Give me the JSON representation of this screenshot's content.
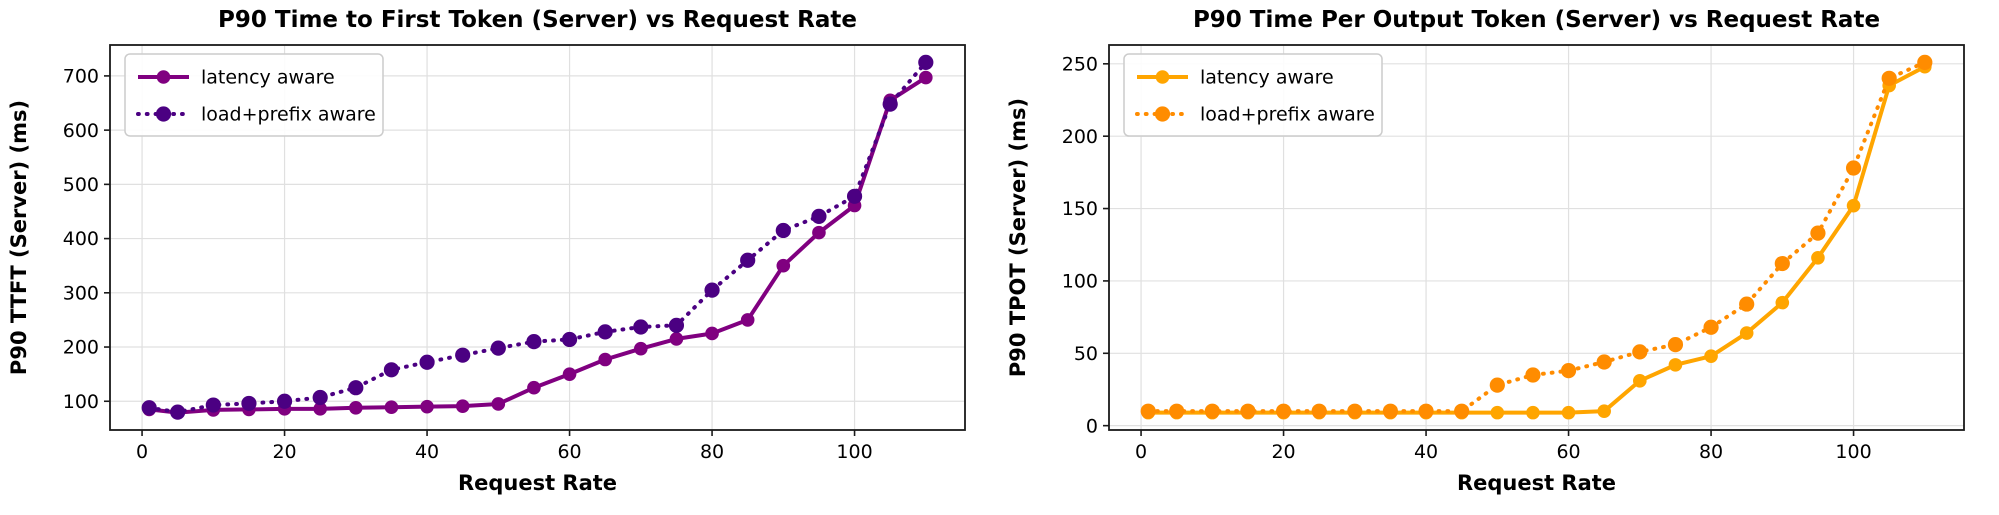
{
  "page": {
    "background": "#ffffff",
    "grid_color": "#e0e0e0",
    "spine_color": "#1a1a1a",
    "legend_border_color": "#cccccc"
  },
  "chart_data": [
    {
      "type": "line",
      "title": "P90 Time to First Token (Server) vs Request Rate",
      "xlabel": "Request Rate",
      "ylabel": "P90 TTFT (Server) (ms)",
      "xlim": [
        -4.5,
        115.5
      ],
      "ylim": [
        47,
        757
      ],
      "xticks": [
        0,
        20,
        40,
        60,
        80,
        100
      ],
      "yticks": [
        100,
        200,
        300,
        400,
        500,
        600,
        700
      ],
      "grid": true,
      "legend_position": "upper-left",
      "x": [
        1,
        5,
        10,
        15,
        20,
        25,
        30,
        35,
        40,
        45,
        50,
        55,
        60,
        65,
        70,
        75,
        80,
        85,
        90,
        95,
        100,
        105,
        110
      ],
      "series": [
        {
          "name": "latency aware",
          "color": "#800080",
          "line_style": "solid",
          "marker": "circle",
          "values": [
            85,
            79,
            84,
            85,
            86,
            86,
            88,
            89,
            90,
            91,
            95,
            125,
            150,
            177,
            197,
            215,
            225,
            250,
            350,
            411,
            461,
            655,
            697
          ]
        },
        {
          "name": "load+prefix aware",
          "color": "#4B0082",
          "line_style": "dotted",
          "marker": "circle",
          "values": [
            88,
            80,
            93,
            96,
            100,
            107,
            125,
            158,
            172,
            185,
            198,
            210,
            214,
            228,
            237,
            240,
            305,
            360,
            415,
            441,
            478,
            648,
            725
          ]
        }
      ]
    },
    {
      "type": "line",
      "title": "P90 Time Per Output Token (Server) vs Request Rate",
      "xlabel": "Request Rate",
      "ylabel": "P90 TPOT (Server) (ms)",
      "xlim": [
        -4.5,
        115.5
      ],
      "ylim": [
        -3,
        263
      ],
      "xticks": [
        0,
        20,
        40,
        60,
        80,
        100
      ],
      "yticks": [
        0,
        50,
        100,
        150,
        200,
        250
      ],
      "grid": true,
      "legend_position": "upper-left",
      "x": [
        1,
        5,
        10,
        15,
        20,
        25,
        30,
        35,
        40,
        45,
        50,
        55,
        60,
        65,
        70,
        75,
        80,
        85,
        90,
        95,
        100,
        105,
        110
      ],
      "series": [
        {
          "name": "latency aware",
          "color": "#FFA500",
          "line_style": "solid",
          "marker": "circle",
          "values": [
            9,
            9,
            9,
            9,
            9,
            9,
            9,
            9,
            9,
            9,
            9,
            9,
            9,
            10,
            31,
            42,
            48,
            64,
            85,
            116,
            152,
            235,
            248
          ]
        },
        {
          "name": "load+prefix aware",
          "color": "#FF8C00",
          "line_style": "dotted",
          "marker": "circle",
          "values": [
            10,
            10,
            10,
            10,
            10,
            10,
            10,
            10,
            10,
            10,
            28,
            35,
            38,
            44,
            51,
            56,
            68,
            84,
            112,
            133,
            178,
            240,
            251
          ]
        }
      ]
    }
  ]
}
